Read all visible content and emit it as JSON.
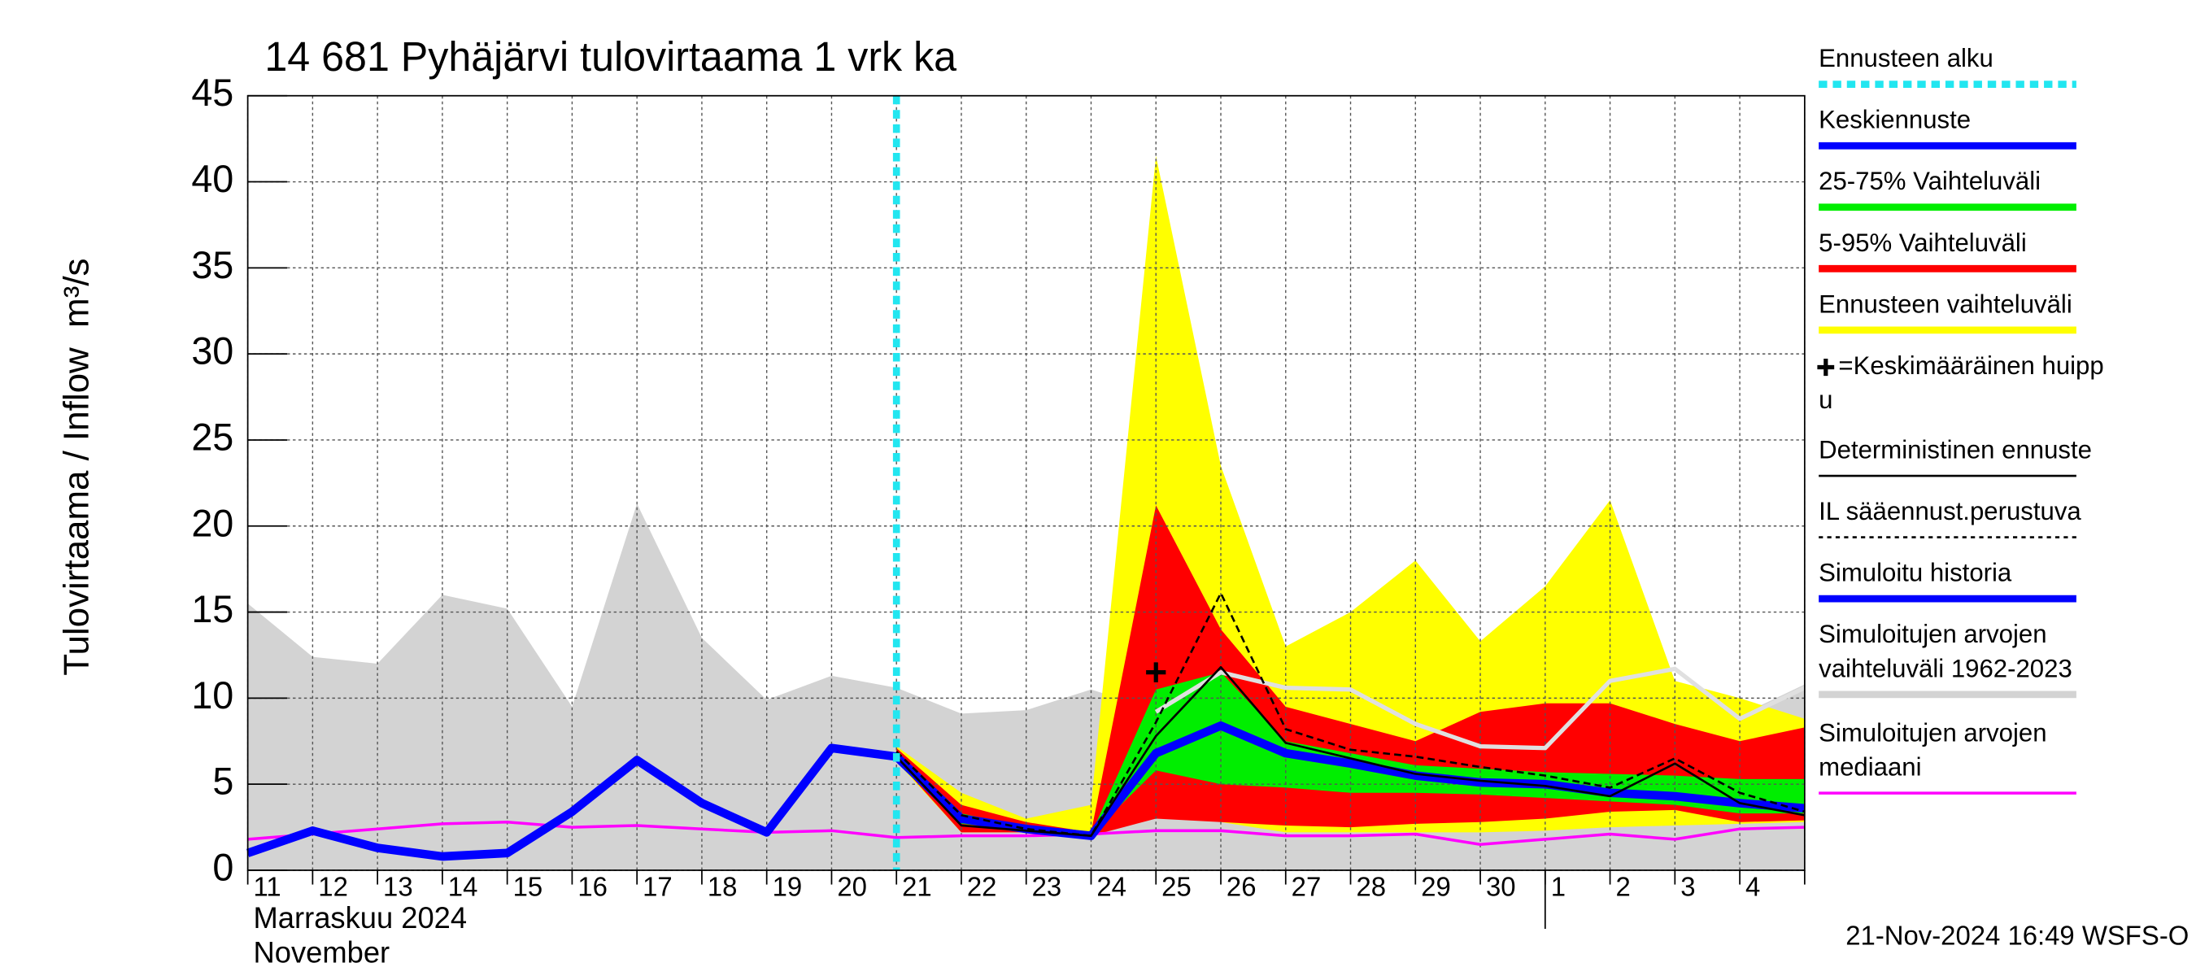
{
  "chart_data": {
    "type": "line",
    "title": "14 681 Pyhäjärvi tulovirtaama 1 vrk ka",
    "y_label": "Tulovirtaama / Inflow",
    "y_unit": "m³/s",
    "x_label_lines": [
      "Marraskuu 2024",
      "November"
    ],
    "footer": "21-Nov-2024 16:49 WSFS-O",
    "categories": [
      "11",
      "12",
      "13",
      "14",
      "15",
      "16",
      "17",
      "18",
      "19",
      "20",
      "21",
      "22",
      "23",
      "24",
      "25",
      "26",
      "27",
      "28",
      "29",
      "30",
      "1",
      "2",
      "3",
      "4",
      null
    ],
    "ylim": [
      0,
      45
    ],
    "yticks": [
      0,
      5,
      10,
      15,
      20,
      25,
      30,
      35,
      40,
      45
    ],
    "grid": true,
    "forecast_start": 10,
    "month_break": 20,
    "peak": {
      "x": 14,
      "y": 11.5
    },
    "bands": [
      {
        "color": "#d3d3d3",
        "upper": [
          15.5,
          12.4,
          12.0,
          16.0,
          15.2,
          9.5,
          21.3,
          13.5,
          9.9,
          11.3,
          10.6,
          9.1,
          9.3,
          10.5,
          9.3,
          11.6,
          11.0,
          10.5,
          10.5,
          9.5,
          9.3,
          10.0,
          11.0,
          9.0,
          10.8
        ],
        "lower": [
          0,
          0,
          0,
          0,
          0,
          0,
          0,
          0,
          0,
          0,
          0,
          0,
          0,
          0,
          0,
          0,
          0,
          0,
          0,
          0,
          0,
          0,
          0,
          0,
          0
        ]
      },
      {
        "color": "#ffff00",
        "upper": [
          null,
          null,
          null,
          null,
          null,
          null,
          null,
          null,
          null,
          null,
          7.2,
          4.5,
          3.0,
          3.8,
          41.5,
          23.5,
          13.0,
          15.0,
          18.0,
          13.3,
          16.5,
          21.5,
          11.0,
          10.0,
          8.8
        ],
        "lower": [
          null,
          null,
          null,
          null,
          null,
          null,
          null,
          null,
          null,
          null,
          6.3,
          2.2,
          2.2,
          2.0,
          3.8,
          2.8,
          2.2,
          2.2,
          2.2,
          2.2,
          2.3,
          2.5,
          2.6,
          2.7,
          2.8
        ]
      },
      {
        "color": "#ff0000",
        "upper": [
          null,
          null,
          null,
          null,
          null,
          null,
          null,
          null,
          null,
          null,
          7.1,
          3.8,
          2.8,
          2.2,
          21.2,
          14.0,
          9.5,
          8.5,
          7.5,
          9.2,
          9.7,
          9.7,
          8.5,
          7.5,
          8.3
        ],
        "lower": [
          null,
          null,
          null,
          null,
          null,
          null,
          null,
          null,
          null,
          null,
          6.4,
          2.2,
          2.2,
          2.0,
          3.0,
          2.8,
          2.6,
          2.5,
          2.7,
          2.8,
          3.0,
          3.4,
          3.5,
          2.8,
          2.9
        ]
      },
      {
        "color": "#00ee00",
        "upper": [
          null,
          null,
          null,
          null,
          null,
          null,
          null,
          null,
          null,
          null,
          6.9,
          3.3,
          2.5,
          2.1,
          10.5,
          11.5,
          7.5,
          6.8,
          6.1,
          5.9,
          5.7,
          5.6,
          5.5,
          5.3,
          5.3
        ],
        "lower": [
          null,
          null,
          null,
          null,
          null,
          null,
          null,
          null,
          null,
          null,
          6.6,
          2.7,
          2.3,
          2.1,
          5.8,
          5.0,
          4.8,
          4.5,
          4.5,
          4.4,
          4.2,
          4.0,
          3.8,
          3.3,
          3.3
        ]
      }
    ],
    "series": [
      {
        "color": "#ff00ff",
        "width": 2,
        "dash": null,
        "values": [
          1.8,
          2.1,
          2.4,
          2.7,
          2.8,
          2.5,
          2.6,
          2.4,
          2.2,
          2.3,
          1.9,
          2.0,
          2.0,
          2.1,
          2.3,
          2.3,
          2.0,
          2.0,
          2.1,
          1.5,
          1.8,
          2.1,
          1.8,
          2.4,
          2.5
        ]
      },
      {
        "color": "#e0e0e0",
        "width": 3,
        "dash": null,
        "values": [
          null,
          null,
          null,
          null,
          null,
          null,
          null,
          null,
          null,
          null,
          null,
          null,
          null,
          null,
          9.2,
          11.5,
          10.6,
          10.5,
          8.5,
          7.2,
          7.1,
          11.0,
          11.7,
          8.8,
          10.6
        ]
      },
      {
        "color": "#0000ff",
        "width": 6,
        "dash": null,
        "values": [
          1.0,
          2.3,
          1.3,
          0.8,
          1.0,
          3.4,
          6.4,
          3.9,
          2.2,
          7.1,
          6.6,
          null,
          null,
          null,
          null,
          null,
          null,
          null,
          null,
          null,
          null,
          null,
          null,
          null,
          null
        ]
      },
      {
        "color": "#0000ff",
        "width": 6,
        "dash": null,
        "values": [
          null,
          null,
          null,
          null,
          null,
          null,
          null,
          null,
          null,
          null,
          6.6,
          3.0,
          2.4,
          2.0,
          6.8,
          8.4,
          6.8,
          6.2,
          5.5,
          5.1,
          5.0,
          4.5,
          4.3,
          3.9,
          3.6
        ]
      },
      {
        "color": "#000000",
        "width": 1.5,
        "dash": "5,3",
        "values": [
          null,
          null,
          null,
          null,
          null,
          null,
          null,
          null,
          null,
          null,
          6.9,
          3.2,
          2.4,
          2.0,
          8.6,
          16.1,
          8.2,
          7.0,
          6.6,
          6.0,
          5.5,
          4.8,
          6.5,
          4.5,
          3.4
        ]
      },
      {
        "color": "#000000",
        "width": 1.5,
        "dash": null,
        "values": [
          null,
          null,
          null,
          null,
          null,
          null,
          null,
          null,
          null,
          null,
          6.6,
          2.6,
          2.3,
          2.0,
          7.8,
          11.8,
          7.4,
          6.5,
          5.6,
          5.2,
          4.9,
          4.3,
          6.2,
          3.9,
          3.2
        ]
      }
    ],
    "legend": [
      {
        "lines": [
          "Ennusteen alku"
        ],
        "color": "#22e6f0",
        "width": 5,
        "dash": "6,4"
      },
      {
        "lines": [
          "Keskiennuste"
        ],
        "color": "#0000ff",
        "width": 5,
        "dash": null
      },
      {
        "lines": [
          "25-75% Vaihteluväli"
        ],
        "color": "#00ee00",
        "width": 5,
        "dash": null
      },
      {
        "lines": [
          "5-95% Vaihteluväli"
        ],
        "color": "#ff0000",
        "width": 5,
        "dash": null
      },
      {
        "lines": [
          "Ennusteen vaihteluväli"
        ],
        "color": "#ffff00",
        "width": 5,
        "dash": null
      },
      {
        "lines": [
          "=Keskimääräinen huipp",
          "u"
        ],
        "symbol": "plus"
      },
      {
        "lines": [
          "Deterministinen ennuste"
        ],
        "color": "#000000",
        "width": 1.5,
        "dash": null
      },
      {
        "lines": [
          "IL sääennust.perustuva"
        ],
        "color": "#000000",
        "width": 1.5,
        "dash": "3,3"
      },
      {
        "lines": [
          "Simuloitu historia"
        ],
        "color": "#0000ff",
        "width": 5,
        "dash": null
      },
      {
        "lines": [
          "Simuloitujen arvojen",
          "vaihteluväli 1962-2023"
        ],
        "color": "#d3d3d3",
        "width": 5,
        "dash": null
      },
      {
        "lines": [
          "Simuloitujen arvojen",
          "mediaani"
        ],
        "color": "#ff00ff",
        "width": 2,
        "dash": null
      }
    ]
  }
}
